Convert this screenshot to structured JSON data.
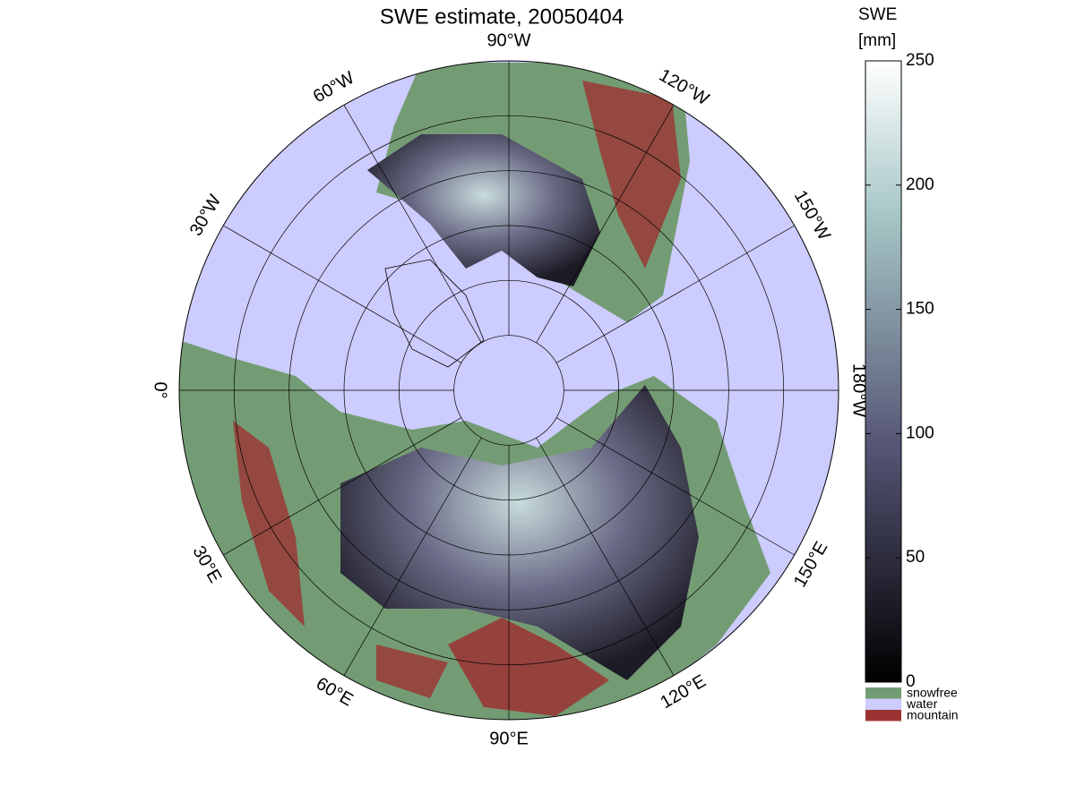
{
  "title": "SWE estimate, 20050404",
  "longitude_labels": [
    "0°",
    "30°E",
    "60°E",
    "90°E",
    "120°E",
    "150°E",
    "180°W",
    "150°W",
    "120°W",
    "90°W",
    "60°W",
    "30°W"
  ],
  "colorbar": {
    "label": [
      "SWE",
      "[mm]"
    ],
    "lim": [
      0,
      250
    ],
    "ticks": [
      0,
      50,
      100,
      150,
      200,
      250
    ]
  },
  "legend": [
    {
      "name": "snowfree",
      "color": "#749c74"
    },
    {
      "name": "water",
      "color": "#ccccff"
    },
    {
      "name": "mountain",
      "color": "#9c3333"
    }
  ]
}
